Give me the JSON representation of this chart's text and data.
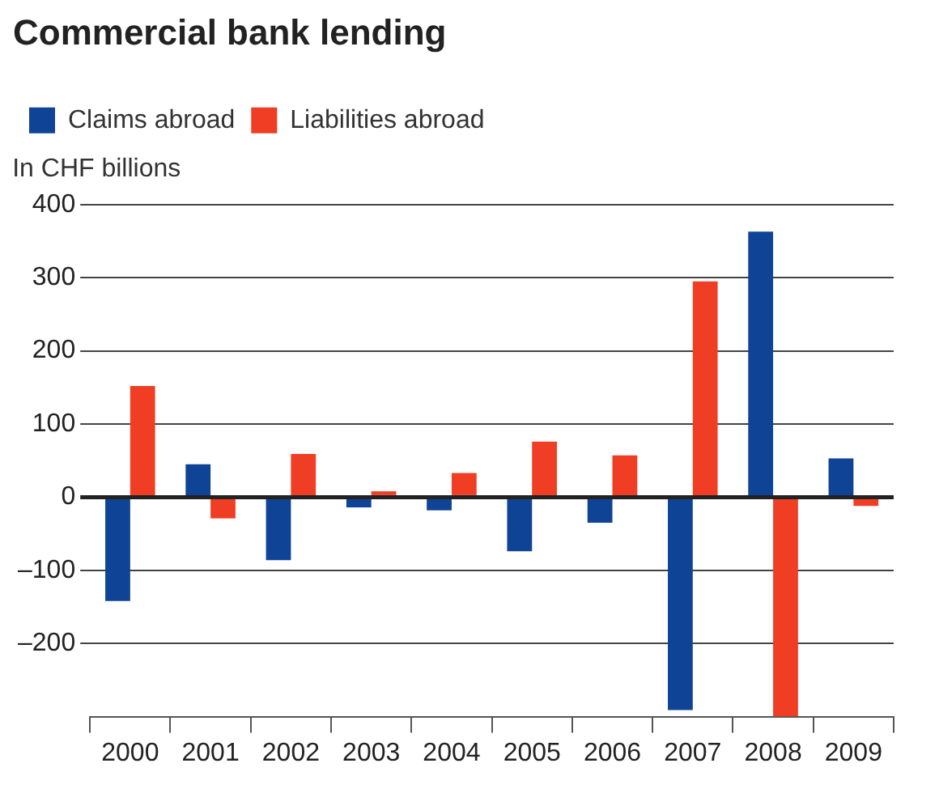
{
  "chart_data": {
    "type": "bar",
    "title": "Commercial bank lending",
    "ylabel": "In CHF billions",
    "categories": [
      "2000",
      "2001",
      "2002",
      "2003",
      "2004",
      "2005",
      "2006",
      "2007",
      "2008",
      "2009"
    ],
    "series": [
      {
        "name": "Claims abroad",
        "color": "#0f4396",
        "values": [
          -142,
          45,
          -86,
          -14,
          -18,
          -74,
          -35,
          -291,
          363,
          53
        ]
      },
      {
        "name": "Liabilities abroad",
        "color": "#f03e24",
        "values": [
          152,
          -29,
          59,
          8,
          33,
          76,
          57,
          295,
          -300,
          -12
        ]
      }
    ],
    "ylim": [
      -300,
      400
    ],
    "yticks": [
      {
        "value": -200,
        "label": "–200"
      },
      {
        "value": -100,
        "label": "–100"
      },
      0,
      100,
      200,
      300,
      400
    ],
    "grid": "y",
    "legend": "top left"
  }
}
